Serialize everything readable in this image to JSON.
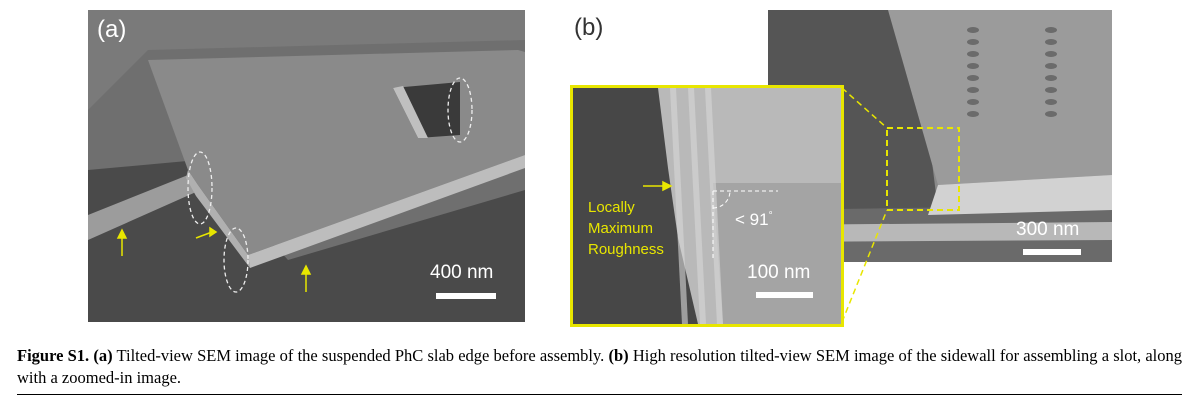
{
  "panel_a": {
    "label": "(a)",
    "scale_bar": "400 nm"
  },
  "panel_b": {
    "label": "(b)",
    "main_scale_bar": "300 nm",
    "zoom_scale_bar": "100 nm",
    "zoom_annotation": [
      "Locally",
      "Maximum",
      "Roughness"
    ],
    "angle": "< 91",
    "angle_degree": "°",
    "colors": {
      "highlight": "#e8e600"
    }
  },
  "caption": {
    "figure_label": "Figure S1.",
    "part_a_label": "(a)",
    "part_a_text": "Tilted-view SEM image of the suspended PhC slab edge before assembly.",
    "part_b_label": "(b)",
    "part_b_text": "High resolution tilted-view SEM image of the sidewall for assembling a slot, along with a zoomed-in image."
  }
}
